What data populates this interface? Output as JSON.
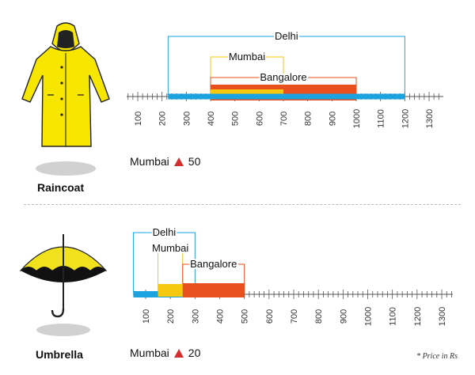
{
  "footnote": "* Price in Rs",
  "colors": {
    "Delhi": "#1aa3df",
    "Mumbai": "#f6c90e",
    "Bangalore": "#e8501e",
    "up": "#d32f2f",
    "ticks": "#555555",
    "raincoat": "#f7e600",
    "umbrella_canopy": "#f2e21e",
    "umbrella_dark": "#111111"
  },
  "icons": [
    "raincoat-icon",
    "umbrella-icon"
  ],
  "chart_data": [
    {
      "type": "range",
      "product": "Raincoat",
      "change": {
        "city": "Mumbai",
        "direction": "up",
        "value": "50"
      },
      "ticks": [
        "100",
        "200",
        "300",
        "400",
        "500",
        "600",
        "700",
        "800",
        "900",
        "1000",
        "1100",
        "1200",
        "1300"
      ],
      "xlim": [
        100,
        1300
      ],
      "series": [
        {
          "name": "Delhi",
          "min": 225,
          "max": 1200
        },
        {
          "name": "Mumbai",
          "min": 400,
          "max": 700
        },
        {
          "name": "Bangalore",
          "min": 400,
          "max": 1000
        }
      ]
    },
    {
      "type": "range",
      "product": "Umbrella",
      "change": {
        "city": "Mumbai",
        "direction": "up",
        "value": "20"
      },
      "ticks": [
        "100",
        "200",
        "300",
        "400",
        "500",
        "600",
        "700",
        "800",
        "900",
        "1000",
        "1100",
        "1200",
        "1300"
      ],
      "xlim": [
        50,
        1350
      ],
      "series": [
        {
          "name": "Delhi",
          "min": 50,
          "max": 300
        },
        {
          "name": "Mumbai",
          "min": 150,
          "max": 250
        },
        {
          "name": "Bangalore",
          "min": 250,
          "max": 500
        }
      ]
    }
  ]
}
